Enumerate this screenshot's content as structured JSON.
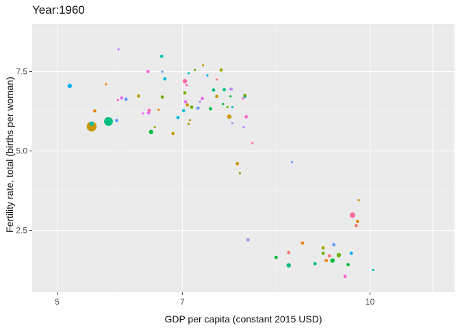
{
  "chart_data": {
    "type": "scatter",
    "title": "Year:1960",
    "xlabel": "GDP per capita (constant 2015 USD)",
    "ylabel": "Fertility rate, total (births per woman)",
    "xlim": [
      4.6,
      11.35
    ],
    "ylim": [
      0.55,
      9.0
    ],
    "x_major_ticks": [
      5,
      7,
      10
    ],
    "x_major_tick_labels": [
      "5",
      "7",
      "10"
    ],
    "x_minor_ticks": [
      6,
      8.5
    ],
    "x_extra_gridlines": [
      11
    ],
    "y_major_ticks": [
      2.5,
      5.0,
      7.5
    ],
    "y_major_tick_labels": [
      "2.5",
      "5.0",
      "7.5"
    ],
    "y_minor_ticks": [
      1.25,
      3.75,
      6.25,
      8.75
    ],
    "panel_background": "#ebebeb",
    "grid": true,
    "legend": "none",
    "palette": [
      "#F8766D",
      "#E58700",
      "#C99800",
      "#A3A500",
      "#6BB100",
      "#00BA38",
      "#00BF7D",
      "#00C0AF",
      "#00BCD8",
      "#00B0F6",
      "#619CFF",
      "#B983FF",
      "#E76BF3",
      "#FD61D1",
      "#FF67A4"
    ],
    "points": [
      {
        "x": 5.2,
        "y": 7.05,
        "size": 4,
        "color": "#00B0F6"
      },
      {
        "x": 5.55,
        "y": 5.77,
        "size": 9,
        "color": "#C99800"
      },
      {
        "x": 5.55,
        "y": 5.86,
        "size": 4,
        "color": "#00C0AF"
      },
      {
        "x": 5.6,
        "y": 6.26,
        "size": 3,
        "color": "#E58700"
      },
      {
        "x": 5.78,
        "y": 7.1,
        "size": 2,
        "color": "#E58700"
      },
      {
        "x": 5.82,
        "y": 5.93,
        "size": 8,
        "color": "#00BF7D"
      },
      {
        "x": 5.95,
        "y": 5.96,
        "size": 3,
        "color": "#619CFF"
      },
      {
        "x": 5.97,
        "y": 6.6,
        "size": 2,
        "color": "#FD61D1"
      },
      {
        "x": 5.98,
        "y": 8.2,
        "size": 2,
        "color": "#B983FF"
      },
      {
        "x": 6.03,
        "y": 6.67,
        "size": 3,
        "color": "#E76BF3"
      },
      {
        "x": 6.1,
        "y": 6.63,
        "size": 3,
        "color": "#619CFF"
      },
      {
        "x": 6.3,
        "y": 6.73,
        "size": 3,
        "color": "#C99800"
      },
      {
        "x": 6.37,
        "y": 6.18,
        "size": 2,
        "color": "#E76BF3"
      },
      {
        "x": 6.45,
        "y": 7.5,
        "size": 3,
        "color": "#FD61D1"
      },
      {
        "x": 6.46,
        "y": 6.2,
        "size": 3,
        "color": "#E76BF3"
      },
      {
        "x": 6.47,
        "y": 6.28,
        "size": 3,
        "color": "#FF67A4"
      },
      {
        "x": 6.5,
        "y": 5.6,
        "size": 4,
        "color": "#00BA38"
      },
      {
        "x": 6.56,
        "y": 5.75,
        "size": 2,
        "color": "#A3A500"
      },
      {
        "x": 6.62,
        "y": 6.3,
        "size": 2,
        "color": "#E58700"
      },
      {
        "x": 6.67,
        "y": 7.98,
        "size": 3,
        "color": "#00C0AF"
      },
      {
        "x": 6.68,
        "y": 7.5,
        "size": 2,
        "color": "#619CFF"
      },
      {
        "x": 6.68,
        "y": 6.7,
        "size": 3,
        "color": "#6BB100"
      },
      {
        "x": 6.72,
        "y": 7.27,
        "size": 3,
        "color": "#00BCD8"
      },
      {
        "x": 6.85,
        "y": 5.55,
        "size": 3,
        "color": "#C99800"
      },
      {
        "x": 6.93,
        "y": 6.05,
        "size": 3,
        "color": "#00BCD8"
      },
      {
        "x": 7.02,
        "y": 6.27,
        "size": 3,
        "color": "#00BCD8"
      },
      {
        "x": 7.04,
        "y": 7.2,
        "size": 4,
        "color": "#FF67A4"
      },
      {
        "x": 7.04,
        "y": 6.83,
        "size": 3,
        "color": "#6BB100"
      },
      {
        "x": 7.05,
        "y": 6.55,
        "size": 3,
        "color": "#E76BF3"
      },
      {
        "x": 7.07,
        "y": 7.07,
        "size": 2,
        "color": "#FD61D1"
      },
      {
        "x": 7.08,
        "y": 6.45,
        "size": 3,
        "color": "#C99800"
      },
      {
        "x": 7.1,
        "y": 7.45,
        "size": 2,
        "color": "#00C0AF"
      },
      {
        "x": 7.1,
        "y": 5.85,
        "size": 2,
        "color": "#A3A500"
      },
      {
        "x": 7.12,
        "y": 5.97,
        "size": 2,
        "color": "#C99800"
      },
      {
        "x": 7.15,
        "y": 6.38,
        "size": 3,
        "color": "#6BB100"
      },
      {
        "x": 7.2,
        "y": 7.55,
        "size": 2,
        "color": "#6BB100"
      },
      {
        "x": 7.25,
        "y": 6.35,
        "size": 3,
        "color": "#619CFF"
      },
      {
        "x": 7.28,
        "y": 6.55,
        "size": 2,
        "color": "#B983FF"
      },
      {
        "x": 7.32,
        "y": 6.65,
        "size": 3,
        "color": "#E76BF3"
      },
      {
        "x": 7.33,
        "y": 7.7,
        "size": 2,
        "color": "#C99800"
      },
      {
        "x": 7.4,
        "y": 7.38,
        "size": 2,
        "color": "#00B0F6"
      },
      {
        "x": 7.45,
        "y": 6.33,
        "size": 3,
        "color": "#00BA38"
      },
      {
        "x": 7.5,
        "y": 6.92,
        "size": 3,
        "color": "#00BF7D"
      },
      {
        "x": 7.55,
        "y": 7.25,
        "size": 2,
        "color": "#F8766D"
      },
      {
        "x": 7.55,
        "y": 6.72,
        "size": 3,
        "color": "#C99800"
      },
      {
        "x": 7.62,
        "y": 7.55,
        "size": 3,
        "color": "#A3A500"
      },
      {
        "x": 7.65,
        "y": 6.48,
        "size": 2,
        "color": "#00BA38"
      },
      {
        "x": 7.67,
        "y": 6.93,
        "size": 3,
        "color": "#00BF7D"
      },
      {
        "x": 7.72,
        "y": 6.38,
        "size": 2,
        "color": "#6BB100"
      },
      {
        "x": 7.75,
        "y": 6.08,
        "size": 4,
        "color": "#C99800"
      },
      {
        "x": 7.77,
        "y": 6.72,
        "size": 2,
        "color": "#00BA38"
      },
      {
        "x": 7.78,
        "y": 6.95,
        "size": 3,
        "color": "#B983FF"
      },
      {
        "x": 7.8,
        "y": 6.38,
        "size": 2,
        "color": "#00C0AF"
      },
      {
        "x": 7.8,
        "y": 5.88,
        "size": 2,
        "color": "#B983FF"
      },
      {
        "x": 7.88,
        "y": 4.6,
        "size": 3,
        "color": "#C99800"
      },
      {
        "x": 7.92,
        "y": 4.3,
        "size": 2,
        "color": "#6BB100"
      },
      {
        "x": 7.97,
        "y": 6.65,
        "size": 2,
        "color": "#FD61D1"
      },
      {
        "x": 7.98,
        "y": 5.75,
        "size": 2,
        "color": "#B983FF"
      },
      {
        "x": 8.0,
        "y": 6.72,
        "size": 3,
        "color": "#00B0F6"
      },
      {
        "x": 8.02,
        "y": 6.08,
        "size": 3,
        "color": "#FD61D1"
      },
      {
        "x": 8.0,
        "y": 6.75,
        "size": 3,
        "color": "#6BB100"
      },
      {
        "x": 8.05,
        "y": 2.2,
        "size": 3,
        "color": "#B983FF"
      },
      {
        "x": 8.12,
        "y": 5.25,
        "size": 2,
        "color": "#FF67A4"
      },
      {
        "x": 8.5,
        "y": 1.65,
        "size": 3,
        "color": "#00BA38"
      },
      {
        "x": 8.7,
        "y": 1.4,
        "size": 4,
        "color": "#00BF7D"
      },
      {
        "x": 8.7,
        "y": 1.8,
        "size": 3,
        "color": "#F8766D"
      },
      {
        "x": 8.75,
        "y": 4.65,
        "size": 2,
        "color": "#619CFF"
      },
      {
        "x": 8.92,
        "y": 2.1,
        "size": 3,
        "color": "#E58700"
      },
      {
        "x": 9.12,
        "y": 1.45,
        "size": 3,
        "color": "#00BF7D"
      },
      {
        "x": 9.25,
        "y": 1.95,
        "size": 3,
        "color": "#A3A500"
      },
      {
        "x": 9.25,
        "y": 1.78,
        "size": 3,
        "color": "#6BB100"
      },
      {
        "x": 9.3,
        "y": 1.55,
        "size": 3,
        "color": "#E58700"
      },
      {
        "x": 9.35,
        "y": 1.7,
        "size": 3,
        "color": "#F8766D"
      },
      {
        "x": 9.4,
        "y": 1.55,
        "size": 4,
        "color": "#00BA38"
      },
      {
        "x": 9.42,
        "y": 2.05,
        "size": 3,
        "color": "#619CFF"
      },
      {
        "x": 9.5,
        "y": 1.72,
        "size": 4,
        "color": "#6BB100"
      },
      {
        "x": 9.6,
        "y": 1.05,
        "size": 3,
        "color": "#FD61D1"
      },
      {
        "x": 9.65,
        "y": 1.42,
        "size": 3,
        "color": "#00BA38"
      },
      {
        "x": 9.7,
        "y": 1.78,
        "size": 3,
        "color": "#00B0F6"
      },
      {
        "x": 9.72,
        "y": 2.98,
        "size": 5,
        "color": "#FF67A4"
      },
      {
        "x": 9.78,
        "y": 2.65,
        "size": 3,
        "color": "#F8766D"
      },
      {
        "x": 9.8,
        "y": 2.78,
        "size": 3,
        "color": "#E58700"
      },
      {
        "x": 9.82,
        "y": 3.45,
        "size": 2,
        "color": "#C99800"
      },
      {
        "x": 10.05,
        "y": 1.25,
        "size": 2,
        "color": "#00C0AF"
      }
    ]
  }
}
